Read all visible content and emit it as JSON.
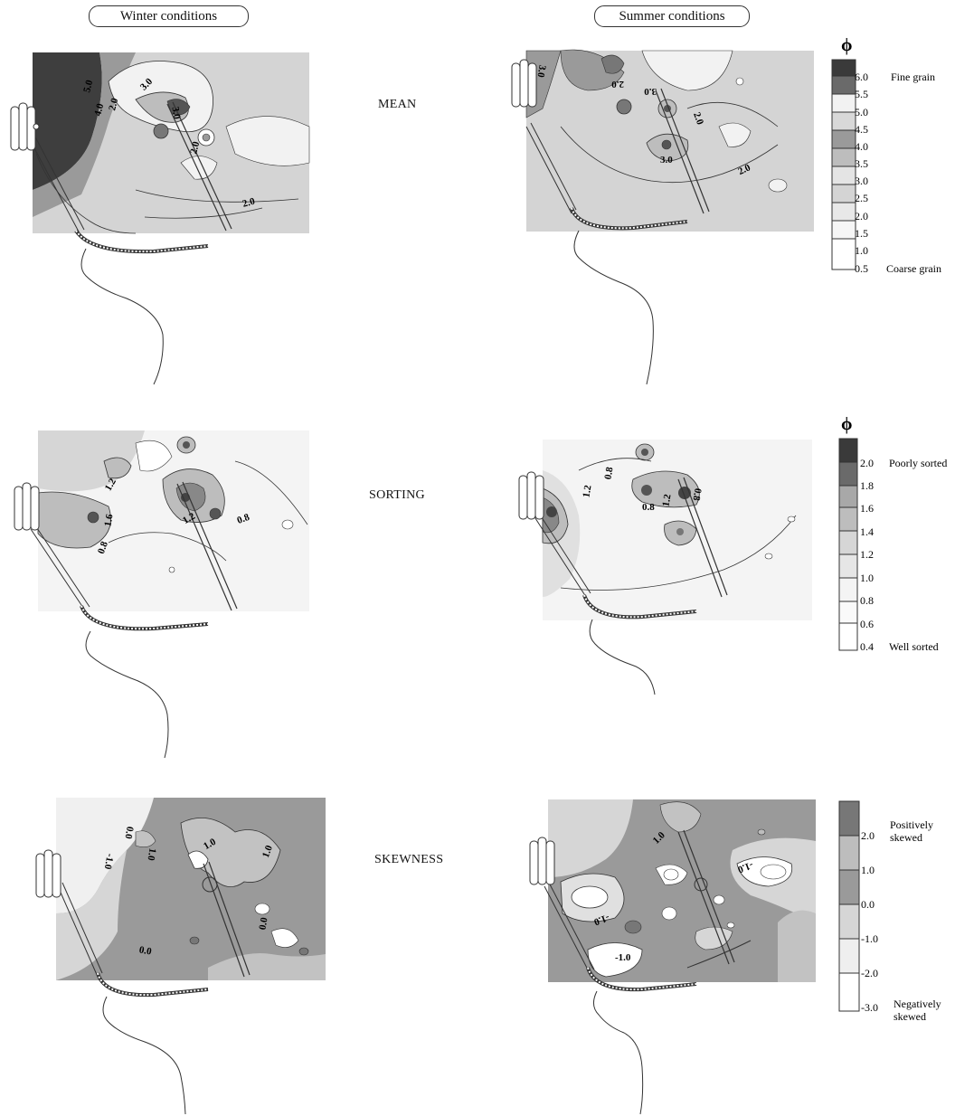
{
  "headers": {
    "winter": "Winter conditions",
    "summer": "Summer conditions"
  },
  "rows": [
    {
      "label": "MEAN",
      "winter_labels": [
        "5.0",
        "4.0",
        "3.0",
        "2.0",
        "3.0",
        "2.0",
        "2.0"
      ],
      "summer_labels": [
        "3.0",
        "2.0",
        "3.0",
        "2.0",
        "3.0",
        "2.0"
      ]
    },
    {
      "label": "SORTING",
      "winter_labels": [
        "1.2",
        "1.6",
        "0.8",
        "1.2",
        "0.8"
      ],
      "summer_labels": [
        "1.2",
        "0.8",
        "0.8",
        "1.2",
        "0.8"
      ]
    },
    {
      "label": "SKEWNESS",
      "winter_labels": [
        "-1.0",
        "0.0",
        "1.0",
        "1.0",
        "1.0",
        "0.0",
        "0.0"
      ],
      "summer_labels": [
        "1.0",
        "-1.0",
        "-1.0",
        "-1.0"
      ]
    }
  ],
  "legends": [
    {
      "symbol": "ϕ",
      "levels": [
        "6.0",
        "5.5",
        "5.0",
        "4.5",
        "4.0",
        "3.5",
        "3.0",
        "2.5",
        "2.0",
        "1.5",
        "1.0",
        "0.5"
      ],
      "top_text": "Fine grain",
      "bottom_text": "Coarse grain"
    },
    {
      "symbol": "ϕ",
      "levels": [
        "2.0",
        "1.8",
        "1.6",
        "1.4",
        "1.2",
        "1.0",
        "0.8",
        "0.6",
        "0.4"
      ],
      "top_text": "Poorly sorted",
      "bottom_text": "Well sorted"
    },
    {
      "symbol": "",
      "levels": [
        "2.0",
        "1.0",
        "0.0",
        "-1.0",
        "-2.0",
        "-3.0"
      ],
      "top_text_1": "Positively",
      "top_text_2": "skewed",
      "bottom_text_1": "Negatively",
      "bottom_text_2": "skewed"
    }
  ],
  "colors": {
    "dark": "#3a3a3a",
    "mid": "#8d8d8d",
    "light": "#c8c8c8",
    "pale": "#e4e4e4",
    "white": "#ffffff"
  }
}
